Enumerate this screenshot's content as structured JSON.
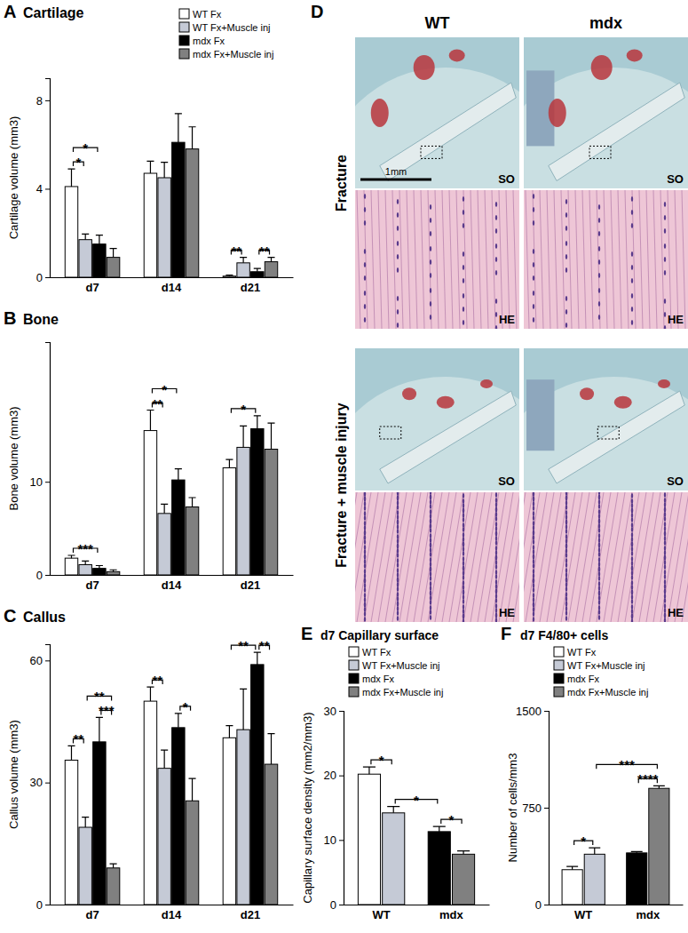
{
  "chart_data": [
    {
      "type": "bar",
      "label": "A",
      "title": "Cartilage",
      "y_label": "Cartilage volume (mm3)",
      "categories": [
        "d7",
        "d14",
        "d21"
      ],
      "series": [
        {
          "name": "WT Fx",
          "color": "#ffffff",
          "values": [
            4.1,
            4.7,
            0.05
          ],
          "errors": [
            0.8,
            0.55,
            0.05
          ]
        },
        {
          "name": "WT Fx+Muscle inj",
          "color": "#c5cad6",
          "values": [
            1.7,
            4.5,
            0.65
          ],
          "errors": [
            0.25,
            0.7,
            0.25
          ]
        },
        {
          "name": "mdx Fx",
          "color": "#000000",
          "values": [
            1.5,
            6.1,
            0.25
          ],
          "errors": [
            0.4,
            1.3,
            0.15
          ]
        },
        {
          "name": "mdx Fx+Muscle inj",
          "color": "#808080",
          "values": [
            0.9,
            5.8,
            0.7
          ],
          "errors": [
            0.4,
            1.0,
            0.2
          ]
        }
      ],
      "ylim": [
        0,
        9
      ],
      "yticks": [
        0,
        4,
        8
      ],
      "legend": "upper right",
      "annotations": [
        {
          "text": "*",
          "from": {
            "category": "d7",
            "series": "WT Fx"
          },
          "to": {
            "category": "d7",
            "series": "WT Fx+Muscle inj"
          }
        },
        {
          "text": "*",
          "from": {
            "category": "d7",
            "series": "WT Fx"
          },
          "to": {
            "category": "d7",
            "series": "mdx Fx"
          }
        },
        {
          "text": "**",
          "from": {
            "category": "d21",
            "series": "WT Fx"
          },
          "to": {
            "category": "d21",
            "series": "WT Fx+Muscle inj"
          }
        },
        {
          "text": "**",
          "from": {
            "category": "d21",
            "series": "mdx Fx"
          },
          "to": {
            "category": "d21",
            "series": "mdx Fx+Muscle inj"
          }
        }
      ]
    },
    {
      "type": "bar",
      "label": "B",
      "title": "Bone",
      "y_label": "Bone volume (mm3)",
      "categories": [
        "d7",
        "d14",
        "d21"
      ],
      "series": [
        {
          "name": "WT Fx",
          "color": "#ffffff",
          "values": [
            1.8,
            15.5,
            11.5
          ],
          "errors": [
            0.3,
            2.2,
            0.9
          ]
        },
        {
          "name": "WT Fx+Muscle inj",
          "color": "#c5cad6",
          "values": [
            1.1,
            6.6,
            13.7
          ],
          "errors": [
            0.4,
            1.0,
            2.3
          ]
        },
        {
          "name": "mdx Fx",
          "color": "#000000",
          "values": [
            0.7,
            10.2,
            15.7
          ],
          "errors": [
            0.3,
            1.2,
            1.4
          ]
        },
        {
          "name": "mdx Fx+Muscle inj",
          "color": "#808080",
          "values": [
            0.35,
            7.3,
            13.5
          ],
          "errors": [
            0.2,
            1.0,
            2.8
          ]
        }
      ],
      "ylim": [
        0,
        25
      ],
      "yticks": [
        0,
        10
      ],
      "legend": false,
      "annotations": [
        {
          "text": "***",
          "from": {
            "category": "d7",
            "series": "WT Fx"
          },
          "to": {
            "category": "d7",
            "series": "mdx Fx"
          }
        },
        {
          "text": "**",
          "from": {
            "category": "d14",
            "series": "WT Fx"
          },
          "to": {
            "category": "d14",
            "series": "WT Fx+Muscle inj"
          }
        },
        {
          "text": "*",
          "from": {
            "category": "d14",
            "series": "WT Fx"
          },
          "to": {
            "category": "d14",
            "series": "mdx Fx"
          }
        },
        {
          "text": "*",
          "from": {
            "category": "d21",
            "series": "WT Fx"
          },
          "to": {
            "category": "d21",
            "series": "mdx Fx"
          }
        }
      ]
    },
    {
      "type": "bar",
      "label": "C",
      "title": "Callus",
      "y_label": "Callus volume (mm3)",
      "categories": [
        "d7",
        "d14",
        "d21"
      ],
      "series": [
        {
          "name": "WT Fx",
          "color": "#ffffff",
          "values": [
            35.5,
            50,
            41
          ],
          "errors": [
            3.5,
            3.5,
            3
          ]
        },
        {
          "name": "WT Fx+Muscle inj",
          "color": "#c5cad6",
          "values": [
            19,
            33.5,
            43
          ],
          "errors": [
            2.5,
            4.5,
            10
          ]
        },
        {
          "name": "mdx Fx",
          "color": "#000000",
          "values": [
            40,
            43.5,
            59
          ],
          "errors": [
            6,
            3.5,
            3
          ]
        },
        {
          "name": "mdx Fx+Muscle inj",
          "color": "#808080",
          "values": [
            9,
            25.5,
            34.5
          ],
          "errors": [
            1,
            5.5,
            7.5
          ]
        }
      ],
      "ylim": [
        0,
        64
      ],
      "yticks": [
        0,
        30,
        60
      ],
      "legend": false,
      "annotations": [
        {
          "text": "**",
          "from": {
            "category": "d7",
            "series": "WT Fx"
          },
          "to": {
            "category": "d7",
            "series": "WT Fx+Muscle inj"
          }
        },
        {
          "text": "***",
          "from": {
            "category": "d7",
            "series": "mdx Fx"
          },
          "to": {
            "category": "d7",
            "series": "mdx Fx+Muscle inj"
          }
        },
        {
          "text": "**",
          "from": {
            "category": "d7",
            "series": "WT Fx+Muscle inj"
          },
          "to": {
            "category": "d7",
            "series": "mdx Fx+Muscle inj"
          }
        },
        {
          "text": "**",
          "from": {
            "category": "d14",
            "series": "WT Fx"
          },
          "to": {
            "category": "d14",
            "series": "WT Fx+Muscle inj"
          }
        },
        {
          "text": "*",
          "from": {
            "category": "d14",
            "series": "mdx Fx"
          },
          "to": {
            "category": "d14",
            "series": "mdx Fx+Muscle inj"
          }
        },
        {
          "text": "**",
          "from": {
            "category": "d21",
            "series": "mdx Fx"
          },
          "to": {
            "category": "d21",
            "series": "mdx Fx+Muscle inj"
          }
        },
        {
          "text": "**",
          "from": {
            "category": "d21",
            "series": "WT Fx"
          },
          "to": {
            "category": "d21",
            "series": "mdx Fx"
          }
        }
      ]
    },
    {
      "type": "bar",
      "label": "E",
      "title": "d7 Capillary surface",
      "y_label": "Capillary surface density (mm2/mm3)",
      "categories": [
        "WT",
        "mdx"
      ],
      "series": [
        {
          "name": "WT Fx",
          "color": "#ffffff",
          "values": [
            20.2,
            null
          ],
          "errors": [
            1.1,
            null
          ]
        },
        {
          "name": "WT Fx+Muscle inj",
          "color": "#c5cad6",
          "values": [
            14.2,
            null
          ],
          "errors": [
            1.0,
            null
          ]
        },
        {
          "name": "mdx Fx",
          "color": "#000000",
          "values": [
            null,
            11.3
          ],
          "errors": [
            null,
            0.8
          ]
        },
        {
          "name": "mdx Fx+Muscle inj",
          "color": "#808080",
          "values": [
            null,
            7.8
          ],
          "errors": [
            null,
            0.5
          ]
        }
      ],
      "ylim": [
        0,
        30
      ],
      "yticks": [
        0,
        10,
        20,
        30
      ],
      "legend": "upper left",
      "annotations": [
        {
          "text": "*",
          "from": {
            "category": "WT",
            "series": "WT Fx"
          },
          "to": {
            "category": "WT",
            "series": "WT Fx+Muscle inj"
          }
        },
        {
          "text": "*",
          "from": {
            "category": "mdx",
            "series": "mdx Fx"
          },
          "to": {
            "category": "mdx",
            "series": "mdx Fx+Muscle inj"
          }
        },
        {
          "text": "*",
          "from": {
            "category": "WT",
            "series": "WT Fx+Muscle inj"
          },
          "to": {
            "category": "mdx",
            "series": "mdx Fx"
          }
        }
      ]
    },
    {
      "type": "bar",
      "label": "F",
      "title": "d7 F4/80+ cells",
      "y_label": "Number of cells/mm3",
      "categories": [
        "WT",
        "mdx"
      ],
      "series": [
        {
          "name": "WT Fx",
          "color": "#ffffff",
          "values": [
            270,
            null
          ],
          "errors": [
            25,
            null
          ]
        },
        {
          "name": "WT Fx+Muscle inj",
          "color": "#c5cad6",
          "values": [
            390,
            null
          ],
          "errors": [
            50,
            null
          ]
        },
        {
          "name": "mdx Fx",
          "color": "#000000",
          "values": [
            null,
            400
          ],
          "errors": [
            null,
            10
          ]
        },
        {
          "name": "mdx Fx+Muscle inj",
          "color": "#808080",
          "values": [
            null,
            900
          ],
          "errors": [
            null,
            20
          ]
        }
      ],
      "ylim": [
        0,
        1500
      ],
      "yticks": [
        0,
        750,
        1500
      ],
      "legend": "upper left",
      "annotations": [
        {
          "text": "*",
          "from": {
            "category": "WT",
            "series": "WT Fx"
          },
          "to": {
            "category": "WT",
            "series": "WT Fx+Muscle inj"
          }
        },
        {
          "text": "****",
          "from": {
            "category": "mdx",
            "series": "mdx Fx"
          },
          "to": {
            "category": "mdx",
            "series": "mdx Fx+Muscle inj"
          }
        },
        {
          "text": "***",
          "from": {
            "category": "WT",
            "series": "WT Fx+Muscle inj"
          },
          "to": {
            "category": "mdx",
            "series": "mdx Fx+Muscle inj"
          }
        }
      ]
    }
  ],
  "images": {
    "label": "D",
    "columns": [
      "WT",
      "mdx"
    ],
    "rows": [
      {
        "title": "Fracture",
        "panels": [
          "SO",
          "HE"
        ]
      },
      {
        "title": "Fracture + muscle injury",
        "panels": [
          "SO",
          "HE"
        ]
      }
    ],
    "scale_bar": "1mm"
  }
}
